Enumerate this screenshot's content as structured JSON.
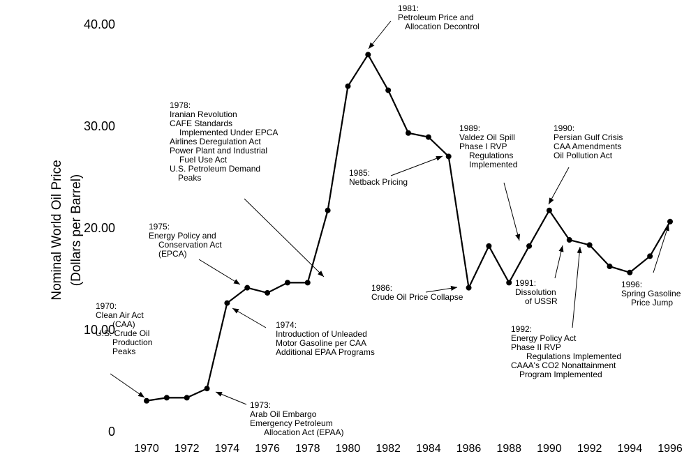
{
  "chart_data": {
    "type": "line",
    "y_label": [
      "Nominal World Oil Price",
      "(Dollars per Barrel)"
    ],
    "x": [
      1970,
      1971,
      1972,
      1973,
      1974,
      1975,
      1976,
      1977,
      1978,
      1979,
      1980,
      1981,
      1982,
      1983,
      1984,
      1985,
      1986,
      1987,
      1988,
      1989,
      1990,
      1991,
      1992,
      1993,
      1994,
      1995,
      1996
    ],
    "series": [
      {
        "color": "#000000",
        "values": [
          3.1,
          3.4,
          3.4,
          4.3,
          12.7,
          14.2,
          13.7,
          14.7,
          14.7,
          21.8,
          34.0,
          37.1,
          33.6,
          29.4,
          29.0,
          27.1,
          14.2,
          18.3,
          14.7,
          18.3,
          21.8,
          18.9,
          18.4,
          16.3,
          15.7,
          17.3,
          20.7
        ]
      }
    ],
    "xlim": [
      1970,
      1996
    ],
    "xticks": [
      1970,
      1972,
      1974,
      1976,
      1978,
      1980,
      1982,
      1984,
      1986,
      1988,
      1990,
      1992,
      1994,
      1996
    ],
    "ylim": [
      0,
      40
    ],
    "yticks": [
      0,
      {
        "value": 10,
        "label": "10.00"
      },
      {
        "value": 20,
        "label": "20.00"
      },
      {
        "value": 30,
        "label": "30.00"
      },
      {
        "value": 40,
        "label": "40.00"
      }
    ],
    "grid": false,
    "annotations": [
      {
        "lines": [
          "1970:",
          "Clean Air Act",
          "(CAA)",
          "U.S. Crude Oil",
          "Production",
          "Peaks"
        ]
      },
      {
        "lines": [
          "1973:",
          "Arab Oil Embargo",
          "Emergency Petroleum",
          "Allocation Act (EPAA)"
        ]
      },
      {
        "lines": [
          "1974:",
          "Introduction of Unleaded",
          "Motor Gasoline per CAA",
          "Additional EPAA Programs"
        ]
      },
      {
        "lines": [
          "1975:",
          "Energy Policy and",
          "Conservation Act",
          "(EPCA)"
        ]
      },
      {
        "lines": [
          "1978:",
          "Iranian Revolution",
          "CAFE Standards",
          "Implemented Under EPCA",
          "Airlines Deregulation Act",
          "Power Plant and Industrial",
          "Fuel Use Act",
          "U.S. Petroleum Demand",
          "Peaks"
        ]
      },
      {
        "lines": [
          "1981:",
          "Petroleum Price and",
          "Allocation Decontrol"
        ]
      },
      {
        "lines": [
          "1985:",
          "Netback Pricing"
        ]
      },
      {
        "lines": [
          "1986:",
          "Crude Oil Price Collapse"
        ]
      },
      {
        "lines": [
          "1989:",
          "Valdez Oil Spill",
          "Phase I RVP",
          "Regulations",
          "Implemented"
        ]
      },
      {
        "lines": [
          "1990:",
          "Persian Gulf Crisis",
          "CAA Amendments",
          "Oil Pollution Act"
        ]
      },
      {
        "lines": [
          "1991:",
          "Dissolution",
          "of USSR"
        ]
      },
      {
        "lines": [
          "1992:",
          "Energy Policy Act",
          "Phase II RVP",
          "Regulations Implemented",
          "CAAA's CO2 Nonattainment",
          "Program Implemented"
        ]
      },
      {
        "lines": [
          "1996:",
          "Spring Gasoline",
          "Price Jump"
        ]
      }
    ]
  }
}
